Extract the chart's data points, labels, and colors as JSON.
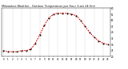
{
  "title": "Milwaukee Weather - Outdoor Temperature per Hour (Last 24 Hrs)",
  "hours": [
    0,
    1,
    2,
    3,
    4,
    5,
    6,
    7,
    8,
    9,
    10,
    11,
    12,
    13,
    14,
    15,
    16,
    17,
    18,
    19,
    20,
    21,
    22,
    23
  ],
  "temps": [
    25,
    24,
    24,
    24,
    25,
    25,
    26,
    31,
    38,
    46,
    52,
    55,
    56,
    56,
    56,
    55,
    54,
    50,
    45,
    40,
    36,
    33,
    31,
    30
  ],
  "line_color": "#dd0000",
  "marker_color": "#000000",
  "bg_color": "#ffffff",
  "grid_color": "#888888",
  "text_color": "#000000",
  "ylim_min": 20,
  "ylim_max": 60,
  "yticks": [
    20,
    25,
    30,
    35,
    40,
    45,
    50,
    55,
    60
  ],
  "title_fontsize": 2.5,
  "tick_fontsize": 2.0,
  "linewidth": 0.7,
  "markersize": 0.9
}
